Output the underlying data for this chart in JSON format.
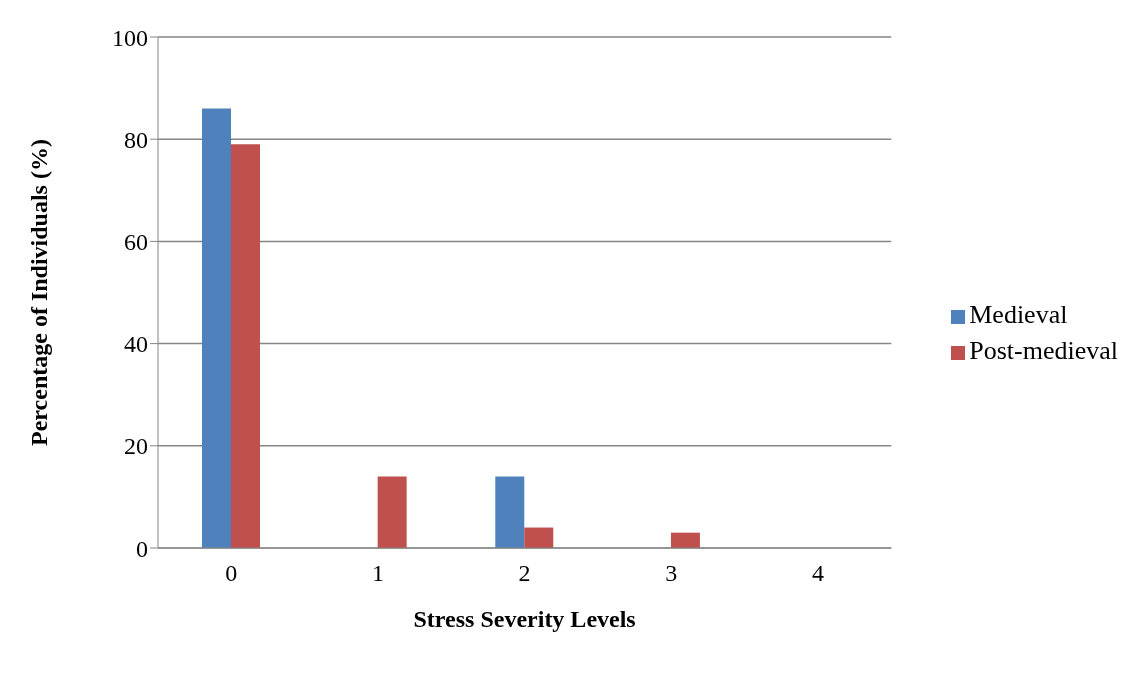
{
  "chart_data": {
    "type": "bar",
    "xlabel": "Stress Severity Levels",
    "ylabel": "Percentage of Individuals (%)",
    "categories": [
      "0",
      "1",
      "2",
      "3",
      "4"
    ],
    "series": [
      {
        "name": "Medieval",
        "color": "#4f81bd",
        "values": [
          86,
          0,
          14,
          0,
          0
        ]
      },
      {
        "name": "Post-medieval",
        "color": "#c0504d",
        "values": [
          79,
          14,
          4,
          3,
          0
        ]
      }
    ],
    "ylim": [
      0,
      100
    ],
    "yticks": [
      0,
      20,
      40,
      60,
      80,
      100
    ],
    "grid": "y",
    "legend": "right"
  }
}
